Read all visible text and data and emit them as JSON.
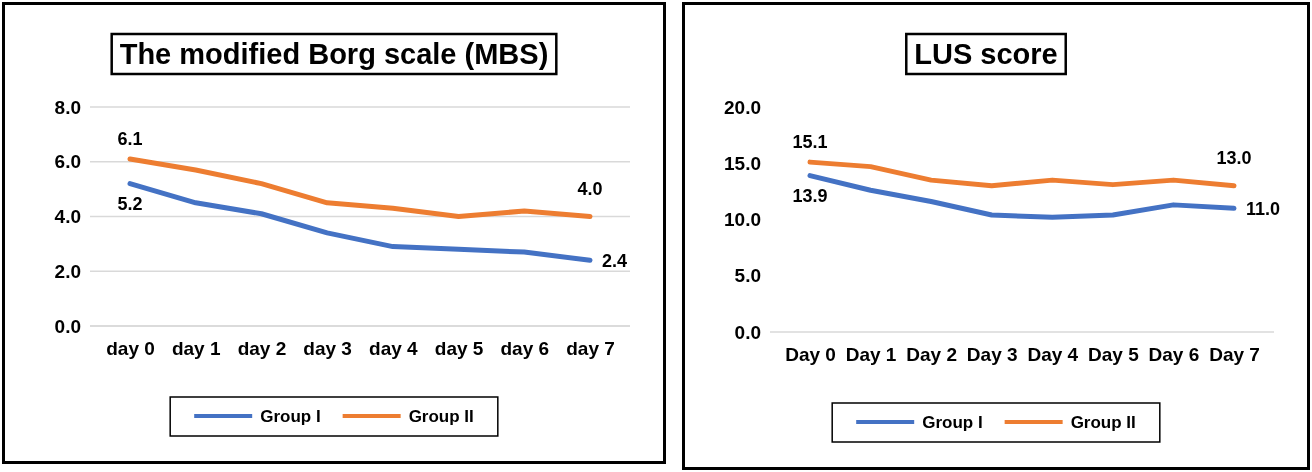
{
  "chart_data": [
    {
      "type": "line",
      "title": "The modified Borg scale (MBS)",
      "categories": [
        "day 0",
        "day 1",
        "day 2",
        "day 3",
        "day 4",
        "day 5",
        "day 6",
        "day 7"
      ],
      "ylim": [
        0,
        8
      ],
      "yticks": [
        {
          "value": 0,
          "label": "0.0"
        },
        {
          "value": 2,
          "label": "2.0"
        },
        {
          "value": 4,
          "label": "4.0"
        },
        {
          "value": 6,
          "label": "6.0"
        },
        {
          "value": 8,
          "label": "8.0"
        }
      ],
      "grid": "y",
      "legend": "bottom",
      "series": [
        {
          "name": "Group I",
          "color": "#4472c4",
          "values": [
            5.2,
            4.5,
            4.1,
            3.4,
            2.9,
            2.8,
            2.7,
            2.4
          ],
          "value_labels": [
            "5.2",
            null,
            null,
            null,
            null,
            null,
            null,
            "2.4"
          ]
        },
        {
          "name": "Group II",
          "color": "#ed7d31",
          "values": [
            6.1,
            5.7,
            5.2,
            4.5,
            4.3,
            4.0,
            4.2,
            4.0
          ],
          "value_labels": [
            "6.1",
            null,
            null,
            null,
            null,
            null,
            null,
            "4.0"
          ]
        }
      ]
    },
    {
      "type": "line",
      "title": "LUS score",
      "categories": [
        "Day 0",
        "Day 1",
        "Day 2",
        "Day 3",
        "Day 4",
        "Day 5",
        "Day 6",
        "Day 7"
      ],
      "ylim": [
        0,
        20
      ],
      "yticks": [
        {
          "value": 0,
          "label": "0.0"
        },
        {
          "value": 5,
          "label": "5.0"
        },
        {
          "value": 10,
          "label": "10.0"
        },
        {
          "value": 15,
          "label": "15.0"
        },
        {
          "value": 20,
          "label": "20.0"
        }
      ],
      "grid": false,
      "legend": "bottom",
      "series": [
        {
          "name": "Group I",
          "color": "#4472c4",
          "values": [
            13.9,
            12.6,
            11.6,
            10.4,
            10.2,
            10.4,
            11.3,
            11.0
          ],
          "value_labels": [
            "13.9",
            null,
            null,
            null,
            null,
            null,
            null,
            "11.0"
          ]
        },
        {
          "name": "Group II",
          "color": "#ed7d31",
          "values": [
            15.1,
            14.7,
            13.5,
            13.0,
            13.5,
            13.1,
            13.5,
            13.0
          ],
          "value_labels": [
            "15.1",
            null,
            null,
            null,
            null,
            null,
            null,
            "13.0"
          ]
        }
      ]
    }
  ]
}
